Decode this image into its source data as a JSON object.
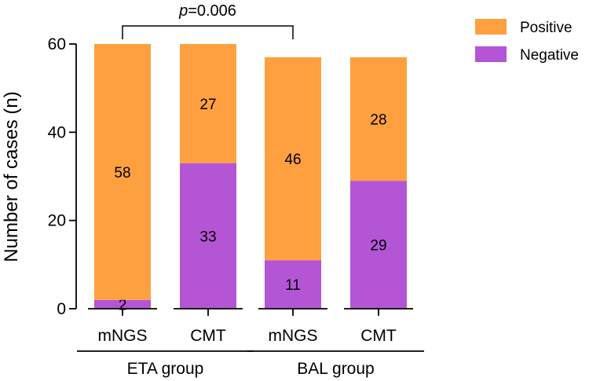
{
  "chart_data": {
    "type": "bar",
    "stacked": true,
    "categories": [
      "mNGS",
      "CMT",
      "mNGS",
      "CMT"
    ],
    "groups": [
      {
        "label": "ETA group",
        "categories": [
          0,
          1
        ]
      },
      {
        "label": "BAL group",
        "categories": [
          2,
          3
        ]
      }
    ],
    "series": [
      {
        "name": "Negative",
        "color": "#b455d6",
        "values": [
          2,
          33,
          11,
          29
        ]
      },
      {
        "name": "Positive",
        "color": "#ffa040",
        "values": [
          58,
          27,
          46,
          28
        ]
      }
    ],
    "legend_order": [
      "Positive",
      "Negative"
    ],
    "ylabel": "Number of cases (n)",
    "ylim": [
      0,
      60
    ],
    "yticks": [
      0,
      20,
      40,
      60
    ],
    "annotation": {
      "p_symbol": "p",
      "p_value": "=0.006",
      "between": [
        0,
        2
      ]
    }
  }
}
